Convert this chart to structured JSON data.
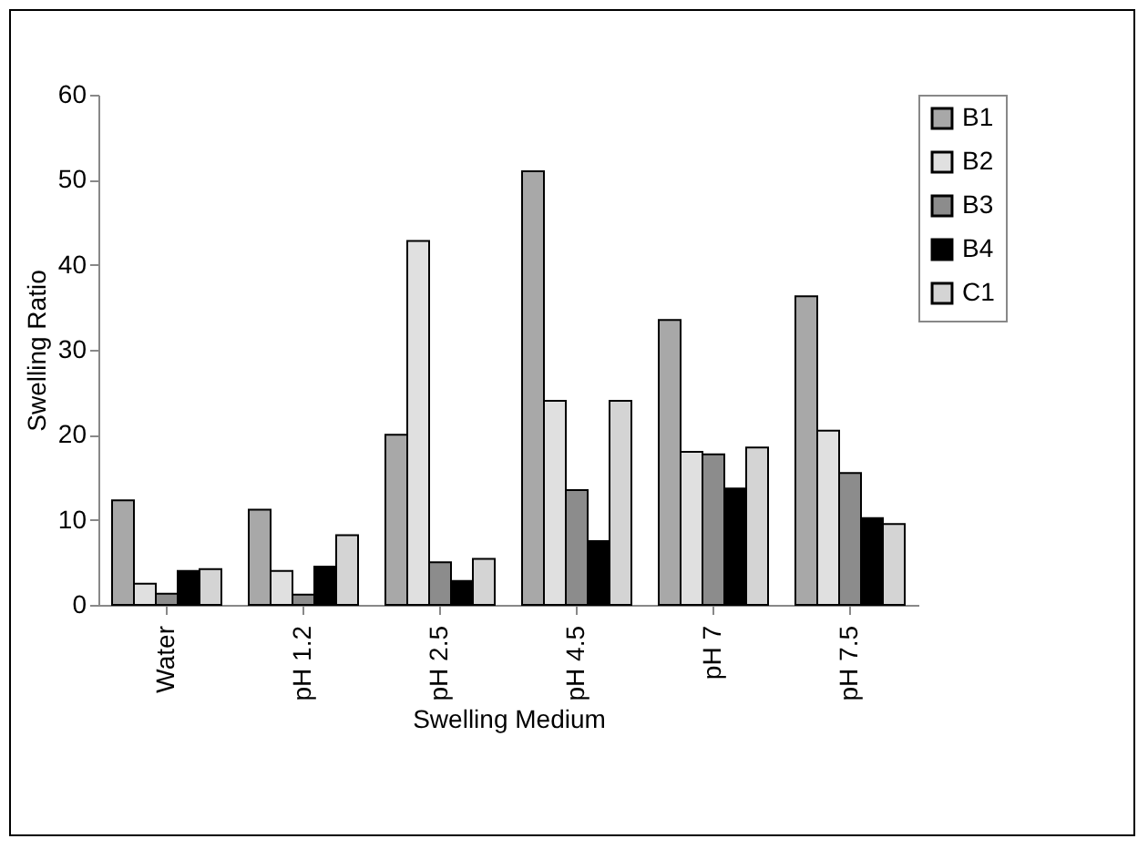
{
  "chart_data": {
    "type": "bar",
    "xlabel": "Swelling Medium",
    "ylabel": "Swelling Ratio",
    "categories": [
      "Water",
      "pH 1.2",
      "pH 2.5",
      "pH 4.5",
      "pH 7",
      "pH 7.5"
    ],
    "series": [
      {
        "name": "B1",
        "color": "#a8a8a8",
        "values": [
          12.3,
          11.2,
          20,
          51,
          33.5,
          36.3
        ]
      },
      {
        "name": "B2",
        "color": "#e0e0e0",
        "values": [
          2.5,
          4,
          42.8,
          24,
          18,
          20.5
        ]
      },
      {
        "name": "B3",
        "color": "#8c8c8c",
        "values": [
          1.3,
          1.2,
          5,
          13.5,
          17.7,
          15.5
        ]
      },
      {
        "name": "B4",
        "color": "#000000",
        "values": [
          4,
          4.5,
          2.8,
          7.5,
          13.7,
          10.2
        ]
      },
      {
        "name": "C1",
        "color": "#d4d4d4",
        "values": [
          4.2,
          8.2,
          5.4,
          24,
          18.5,
          9.5
        ]
      }
    ],
    "ylim": [
      0,
      60
    ],
    "yticks": [
      0,
      10,
      20,
      30,
      40,
      50,
      60
    ],
    "grid": false,
    "legend": "top right"
  }
}
